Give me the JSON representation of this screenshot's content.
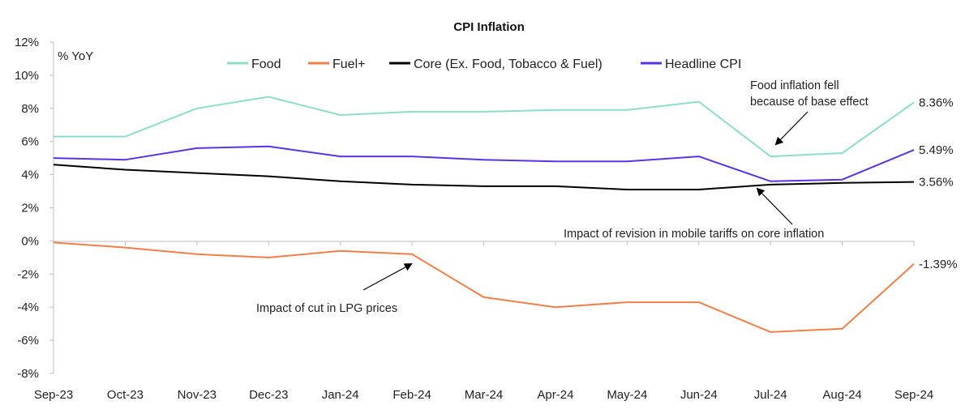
{
  "chart_data": {
    "type": "line",
    "title": "CPI Inflation",
    "ylabel": "% YoY",
    "xlabel": "",
    "ylim": [
      -8,
      12
    ],
    "yticks": [
      12,
      10,
      8,
      6,
      4,
      2,
      0,
      -2,
      -4,
      -6,
      -8
    ],
    "ytick_labels": [
      "12%",
      "10%",
      "8%",
      "6%",
      "4%",
      "2%",
      "0%",
      "-2%",
      "-4%",
      "-6%",
      "-8%"
    ],
    "categories": [
      "Sep-23",
      "Oct-23",
      "Nov-23",
      "Dec-23",
      "Jan-24",
      "Feb-24",
      "Mar-24",
      "Apr-24",
      "May-24",
      "Jun-24",
      "Jul-24",
      "Aug-24",
      "Sep-24"
    ],
    "grid": false,
    "legend_position": "top",
    "series": [
      {
        "name": "Food",
        "color": "#8fdccb",
        "values": [
          6.3,
          6.3,
          8.0,
          8.7,
          7.6,
          7.8,
          7.8,
          7.9,
          7.9,
          8.4,
          5.1,
          5.3,
          8.36
        ],
        "end_label": "8.36%"
      },
      {
        "name": "Fuel+",
        "color": "#f07f4a",
        "values": [
          -0.1,
          -0.4,
          -0.8,
          -1.0,
          -0.6,
          -0.8,
          -3.4,
          -4.0,
          -3.7,
          -3.7,
          -5.5,
          -5.3,
          -1.39
        ],
        "end_label": "-1.39%"
      },
      {
        "name": "Core (Ex. Food, Tobacco & Fuel)",
        "color": "#000000",
        "values": [
          4.6,
          4.3,
          4.1,
          3.9,
          3.6,
          3.4,
          3.3,
          3.3,
          3.1,
          3.1,
          3.4,
          3.5,
          3.56
        ],
        "end_label": "3.56%"
      },
      {
        "name": "Headline CPI",
        "color": "#5b33e6",
        "values": [
          5.0,
          4.9,
          5.6,
          5.7,
          5.1,
          5.1,
          4.9,
          4.8,
          4.8,
          5.1,
          3.6,
          3.7,
          5.49
        ],
        "end_label": "5.49%"
      }
    ],
    "annotations": [
      {
        "lines": [
          "Food inflation fell",
          "because of base effect"
        ]
      },
      {
        "lines": [
          "Impact of revision in mobile tariffs on core inflation"
        ]
      },
      {
        "lines": [
          "Impact of cut in LPG prices"
        ]
      }
    ]
  }
}
